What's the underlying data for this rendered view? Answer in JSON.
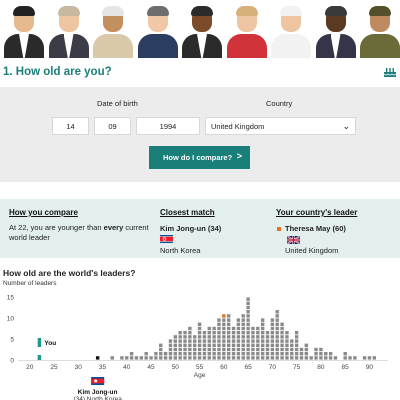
{
  "leaders_banner": {
    "figures": [
      {
        "name": "leader-1",
        "skin": "#e7b98f",
        "hair": "#222",
        "suit": "#2a2a2a",
        "shirt": "#ffffff"
      },
      {
        "name": "leader-2",
        "skin": "#efc4a0",
        "hair": "#c9b8a0",
        "suit": "#3c3c46",
        "shirt": "#ffffff"
      },
      {
        "name": "leader-3",
        "skin": "#c48f5e",
        "hair": "#e5e5e5",
        "suit": "#d9c9a8",
        "shirt": "#d9c9a8"
      },
      {
        "name": "leader-4",
        "skin": "#f1c8a6",
        "hair": "#6d6d6d",
        "suit": "#2b3e60",
        "shirt": "#2b3e60"
      },
      {
        "name": "leader-5",
        "skin": "#7b4b2a",
        "hair": "#2b2b2b",
        "suit": "#2b2b2b",
        "shirt": "#ffffff"
      },
      {
        "name": "leader-6",
        "skin": "#efc4a0",
        "hair": "#d8b07a",
        "suit": "#d0343a",
        "shirt": "#d0343a"
      },
      {
        "name": "leader-7",
        "skin": "#efc4a0",
        "hair": "#f2f2f2",
        "suit": "#f2f2f2",
        "shirt": "#f2f2f2"
      },
      {
        "name": "leader-8",
        "skin": "#5c3a22",
        "hair": "#3a3a3a",
        "suit": "#35354a",
        "shirt": "#ffffff"
      },
      {
        "name": "leader-9",
        "skin": "#c08a60",
        "hair": "#55502c",
        "suit": "#6b6b3a",
        "shirt": "#6b6b3a"
      }
    ]
  },
  "section": {
    "title": "1. How old are you?",
    "icon": "birthday-cake-icon",
    "accent": "#1a7e79"
  },
  "form": {
    "dob_label": "Date of birth",
    "country_label": "Country",
    "day": "14",
    "month": "09",
    "year": "1994",
    "country": "United Kingdom",
    "button_label": "How do I compare?",
    "button_arrow": ">"
  },
  "results": {
    "compare": {
      "heading": "How you compare",
      "line1_pre": "At 22, you are younger than ",
      "line1_bold": "every",
      "line1_post": " current",
      "line2": "world leader"
    },
    "closest": {
      "heading": "Closest match",
      "name": "Kim Jong-un (34)",
      "country": "North Korea",
      "flag": "north-korea-flag"
    },
    "country_leader": {
      "heading": "Your country's leader",
      "name": "Theresa May (60)",
      "country": "United Kingdom",
      "flag": "uk-flag",
      "marker_color": "#e37222"
    }
  },
  "chart_data": {
    "type": "bar",
    "title": "How old are the world's leaders?",
    "ylabel": "Number of leaders",
    "xlabel": "Age",
    "x_ticks": [
      20,
      25,
      30,
      35,
      40,
      45,
      50,
      55,
      60,
      65,
      70,
      75,
      80,
      85,
      90
    ],
    "y_ticks": [
      0,
      5,
      10,
      15
    ],
    "xlim": [
      18,
      93
    ],
    "ylim": [
      0,
      16
    ],
    "x": [
      22,
      34,
      37,
      39,
      40,
      41,
      42,
      43,
      44,
      45,
      46,
      47,
      48,
      49,
      50,
      51,
      52,
      53,
      54,
      55,
      56,
      57,
      58,
      59,
      60,
      61,
      62,
      63,
      64,
      65,
      66,
      67,
      68,
      69,
      70,
      71,
      72,
      73,
      74,
      75,
      76,
      77,
      78,
      79,
      80,
      81,
      82,
      83,
      84,
      85,
      86,
      87,
      88,
      89,
      90,
      91
    ],
    "values": [
      0,
      1,
      1,
      1,
      1,
      2,
      1,
      1,
      2,
      1,
      2,
      4,
      2,
      5,
      6,
      7,
      7,
      8,
      6,
      9,
      7,
      8,
      8,
      10,
      11,
      11,
      8,
      10,
      11,
      15,
      8,
      8,
      10,
      7,
      10,
      12,
      9,
      7,
      5,
      7,
      3,
      4,
      1,
      3,
      3,
      2,
      2,
      1,
      0,
      2,
      1,
      1,
      0,
      1,
      1,
      1
    ],
    "you": {
      "label": "You",
      "age": 22,
      "color": "#1a9a8e"
    },
    "highlight_country_leader": {
      "age": 60,
      "color": "#e37222"
    },
    "highlight_closest": {
      "age": 34,
      "label": "Kim Jong-un",
      "sublabel": "(34) North Korea",
      "color": "#111111"
    },
    "bar_color": "#8a8a8a"
  }
}
